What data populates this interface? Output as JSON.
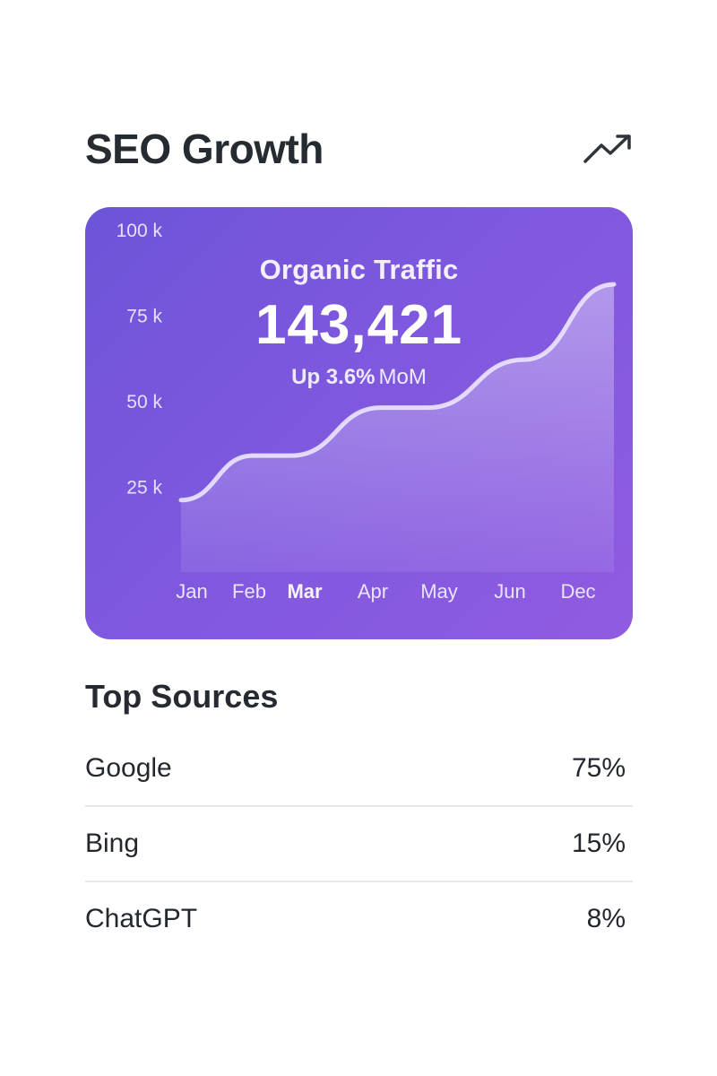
{
  "header": {
    "title": "SEO Growth",
    "icon": "trending-up-icon"
  },
  "traffic_card": {
    "title": "Organic Traffic",
    "value": "143,421",
    "change_label": "Up 3.6%",
    "change_unit": "MoM",
    "colors": {
      "gradient_start": "#6d54d8",
      "gradient_end": "#905be1"
    }
  },
  "chart_data": {
    "type": "area",
    "title": "Organic Traffic",
    "categories": [
      "Jan",
      "Feb",
      "Mar",
      "Apr",
      "May",
      "Jun",
      "Dec"
    ],
    "highlighted_category": "Mar",
    "values": [
      21,
      34,
      34,
      48,
      48,
      62,
      84
    ],
    "series": [
      {
        "name": "Organic Traffic",
        "values": [
          21,
          34,
          34,
          48,
          48,
          62,
          84
        ]
      }
    ],
    "y_ticks": [
      "100 k",
      "75 k",
      "50 k",
      "25 k"
    ],
    "y_tick_values": [
      100,
      75,
      50,
      25
    ],
    "ylim": [
      0,
      100
    ],
    "xlabel": "",
    "ylabel": "",
    "grid": false
  },
  "top_sources": {
    "title": "Top Sources",
    "items": [
      {
        "name": "Google",
        "value": "75%"
      },
      {
        "name": "Bing",
        "value": "15%"
      },
      {
        "name": "ChatGPT",
        "value": "8%"
      }
    ]
  }
}
